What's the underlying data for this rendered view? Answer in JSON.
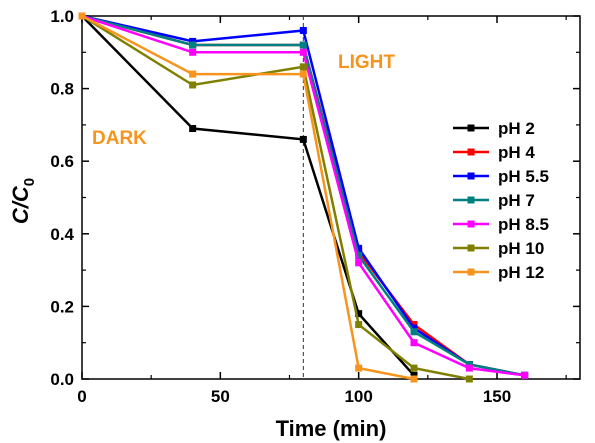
{
  "chart_data": {
    "type": "line",
    "xlabel": "Time (min)",
    "ylabel": {
      "main": "C/C",
      "sub": "0"
    },
    "xlim": [
      0,
      180
    ],
    "ylim": [
      0,
      1.0
    ],
    "xticks": [
      0,
      50,
      100,
      150
    ],
    "xtick_labels": [
      "0",
      "50",
      "100",
      "150"
    ],
    "yticks": [
      0.0,
      0.2,
      0.4,
      0.6,
      0.8,
      1.0
    ],
    "ytick_labels": [
      "0.0",
      "0.2",
      "0.4",
      "0.6",
      "0.8",
      "1.0"
    ],
    "grid": false,
    "legend_position": "right",
    "annotations": [
      {
        "text": "DARK",
        "color": "#f7941d"
      },
      {
        "text": "LIGHT",
        "color": "#f7941d"
      }
    ],
    "reference_line": {
      "x": 80,
      "style": "dashed"
    },
    "series": [
      {
        "name": "pH 2",
        "color": "#000000",
        "x": [
          0,
          40,
          80,
          100,
          120
        ],
        "y": [
          1.0,
          0.69,
          0.66,
          0.18,
          0.01
        ]
      },
      {
        "name": "pH 4",
        "color": "#ff0000",
        "x": [
          0,
          40,
          80,
          100,
          120,
          140,
          160
        ],
        "y": [
          1.0,
          0.92,
          0.92,
          0.35,
          0.15,
          0.04,
          0.01
        ]
      },
      {
        "name": "pH 5.5",
        "color": "#0000ff",
        "x": [
          0,
          40,
          80,
          100,
          120,
          140,
          160
        ],
        "y": [
          1.0,
          0.93,
          0.96,
          0.36,
          0.14,
          0.04,
          0.01
        ]
      },
      {
        "name": "pH 7",
        "color": "#008080",
        "x": [
          0,
          40,
          80,
          100,
          120,
          140,
          160
        ],
        "y": [
          1.0,
          0.92,
          0.92,
          0.34,
          0.13,
          0.04,
          0.01
        ]
      },
      {
        "name": "pH 8.5",
        "color": "#ff00ff",
        "x": [
          0,
          40,
          80,
          100,
          120,
          140,
          160
        ],
        "y": [
          1.0,
          0.9,
          0.9,
          0.32,
          0.1,
          0.03,
          0.01
        ]
      },
      {
        "name": "pH 10",
        "color": "#808000",
        "x": [
          0,
          40,
          80,
          100,
          120,
          140
        ],
        "y": [
          1.0,
          0.81,
          0.86,
          0.15,
          0.03,
          0.0
        ]
      },
      {
        "name": "pH 12",
        "color": "#f7941d",
        "x": [
          0,
          40,
          80,
          100,
          120
        ],
        "y": [
          1.0,
          0.84,
          0.84,
          0.03,
          0.0
        ]
      }
    ]
  }
}
